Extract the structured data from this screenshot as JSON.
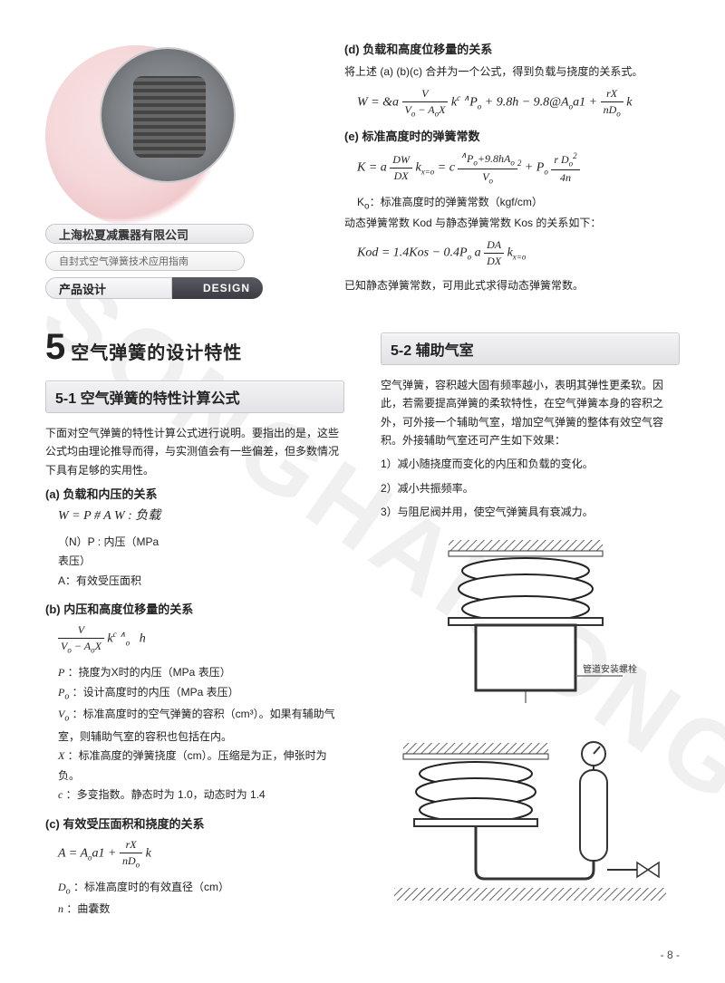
{
  "watermark": "SONGHAISONG",
  "header": {
    "company": "上海松夏减震器有限公司",
    "guide": "自封式空气弹簧技术应用指南",
    "design_cn": "产品设计",
    "design_en": "DESIGN"
  },
  "top_right": {
    "d_title": "(d)  负载和高度位移量的关系",
    "d_text": "将上述 (a) (b)(c) 合并为一个公式，得到负载与挠度的关系式。",
    "d_formula_html": "W = &a <span class='frac'><span class='num'>V</span><span class='den'>V<sub>o</sub> − A<sub>o</sub>X</span></span> k<sup>c</sup> <sup>∧</sup>P<sub>o</sub> + 9.8h − 9.8@A<sub>o</sub>a1 + <span class='frac'><span class='num'>rX</span><span class='den'>nD<sub>o</sub></span></span> k",
    "e_title": "(e)  标准高度时的弹簧常数",
    "e_formula_html": "K = a <span class='frac'><span class='num'>DW</span><span class='den'>DX</span></span> k<sub>x=o</sub> = c <span class='frac'><span class='num'><sup>∧</sup>P<sub>o</sub>+9.8hA<sub>o</sub></span><span class='den'>V<sub>o</sub></span></span><sup>2</sup> + P<sub>o</sub> <span class='frac'><span class='num'>r&nbsp;D<sub>o</sub><sup>2</sup></span><span class='den'>4n</span></span>",
    "e_note1": "K<sub>o</sub>：标准高度时的弹簧常数（kgf/cm）",
    "e_note2": "动态弹簧常数 Kod 与静态弹簧常数 Kos 的关系如下：",
    "e_formula2_html": "Kod = 1.4Kos − 0.4P<sub>o</sub> a <span class='frac'><span class='num'>DA</span><span class='den'>DX</span></span> k<sub>x=o</sub>",
    "e_note3": "已知静态弹簧常数，可用此式求得动态弹簧常数。"
  },
  "section5": {
    "num": "5",
    "title": "空气弹簧的设计特性"
  },
  "sec5_1": {
    "band": "5-1  空气弹簧的特性计算公式",
    "intro": "下面对空气弹簧的特性计算公式进行说明。要指出的是，这些公式均由理论推导而得，与实测值会有一些偏差，但多数情况下具有足够的实用性。",
    "a_title": "(a)  负载和内压的关系",
    "a_formula_html": "W = P # A  W : 负载",
    "a_defs": [
      "（N）P : 内压（MPa",
      "表压）",
      "A：有效受压面积"
    ],
    "b_title": "(b)  内压和高度位移量的关系",
    "b_formula_html": "<span class='frac'><span class='num'>V</span><span class='den'>V<sub>o</sub> − A<sub>o</sub>X</span></span> k<sup>c</sup> <sup>∧</sup><sub>o</sub>&nbsp;&nbsp;&nbsp;h",
    "b_defs": [
      {
        "sym": "P",
        "txt": "：挠度为X时的内压（MPa 表压）"
      },
      {
        "sym": "P<sub>o</sub>",
        "txt": "：设计高度时的内压（MPa 表压）"
      },
      {
        "sym": "V<sub>o</sub>",
        "txt": "：标准高度时的空气弹簧的容积（cm³）。如果有辅助气室，则辅助气室的容积也包括在内。"
      },
      {
        "sym": "X",
        "txt": "：标准高度的弹簧挠度（cm）。压缩是为正，伸张时为负。"
      },
      {
        "sym": "c",
        "txt": "：多变指数。静态时为 1.0，动态时为 1.4"
      }
    ],
    "c_title": "(c)  有效受压面积和挠度的关系",
    "c_formula_html": "A = A<sub>o</sub>a1 + <span class='frac'><span class='num'>rX</span><span class='den'>nD<sub>o</sub></span></span> k",
    "c_defs": [
      {
        "sym": "D<sub>o</sub>",
        "txt": "：标准高度时的有效直径（cm）"
      },
      {
        "sym": "n",
        "txt": "：曲囊数"
      }
    ]
  },
  "sec5_2": {
    "band": "5-2  辅助气室",
    "text": "空气弹簧，容积越大固有频率越小，表明其弹性更柔软。因此，若需要提高弹簧的柔软特性，在空气弹簧本身的容积之外，可外接一个辅助气室，增加空气弹簧的整体有效空气容积。外接辅助气室还可产生如下效果：",
    "points": [
      "1）减小随挠度而变化的内压和负载的变化。",
      "2）减小共振频率。",
      "3）与阻尼阀并用，使空气弹簧具有衰减力。"
    ],
    "diagram_label": "管道安装螺栓"
  },
  "page_number": "- 8 -",
  "colors": {
    "text": "#222222",
    "band_border": "#c8c8ce",
    "band_grad_top": "#f2f2f4",
    "band_grad_bot": "#e3e3e7",
    "logo_pink": "#f0c7ca",
    "dark_bar": "#3b3b42"
  }
}
